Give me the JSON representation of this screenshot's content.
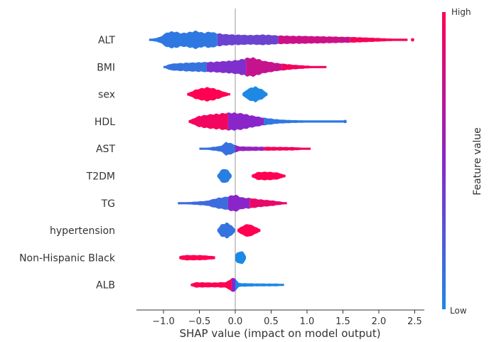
{
  "chart_data": {
    "type": "scatter",
    "subtype": "shap-beeswarm-summary",
    "title": "",
    "xlabel": "SHAP value (impact on model output)",
    "ylabel": "",
    "xlim": [
      -1.38,
      2.65
    ],
    "x_ticks": [
      -1.0,
      -0.5,
      0.0,
      0.5,
      1.0,
      1.5,
      2.0,
      2.5
    ],
    "x_tick_labels": [
      "−1.0",
      "−0.5",
      "0.0",
      "0.5",
      "1.0",
      "1.5",
      "2.0",
      "2.5"
    ],
    "zero_line": true,
    "grid": false,
    "colorbar": {
      "label": "Feature value",
      "high_label": "High",
      "low_label": "Low",
      "high_color": "#ff0052",
      "mid_color": "#8a26c9",
      "low_color": "#1e88e5"
    },
    "features": [
      {
        "name": "ALT",
        "segments": [
          {
            "x0": -1.2,
            "x1": -0.25,
            "value": 0.08
          },
          {
            "x0": -0.25,
            "x1": 0.6,
            "value": 0.35
          },
          {
            "x0": 0.6,
            "x1": 1.6,
            "value": 0.78
          },
          {
            "x0": 1.6,
            "x1": 2.4,
            "value": 0.97
          }
        ],
        "profile": [
          [
            -1.2,
            0.04
          ],
          [
            -1.05,
            0.3
          ],
          [
            -0.95,
            0.8
          ],
          [
            -0.85,
            0.9
          ],
          [
            -0.75,
            0.7
          ],
          [
            -0.65,
            0.8
          ],
          [
            -0.55,
            0.95
          ],
          [
            -0.45,
            0.75
          ],
          [
            -0.35,
            0.85
          ],
          [
            -0.25,
            0.7
          ],
          [
            -0.15,
            0.6
          ],
          [
            0.0,
            0.55
          ],
          [
            0.2,
            0.5
          ],
          [
            0.4,
            0.55
          ],
          [
            0.6,
            0.45
          ],
          [
            0.8,
            0.42
          ],
          [
            1.0,
            0.4
          ],
          [
            1.3,
            0.35
          ],
          [
            1.6,
            0.3
          ],
          [
            1.9,
            0.22
          ],
          [
            2.2,
            0.12
          ],
          [
            2.4,
            0.04
          ]
        ],
        "outliers": [
          2.47
        ]
      },
      {
        "name": "BMI",
        "segments": [
          {
            "x0": -1.0,
            "x1": -0.4,
            "value": 0.1
          },
          {
            "x0": -0.4,
            "x1": 0.15,
            "value": 0.45
          },
          {
            "x0": 0.15,
            "x1": 0.65,
            "value": 0.75
          },
          {
            "x0": 0.65,
            "x1": 1.27,
            "value": 0.95
          }
        ],
        "profile": [
          [
            -1.0,
            0.05
          ],
          [
            -0.9,
            0.35
          ],
          [
            -0.7,
            0.45
          ],
          [
            -0.5,
            0.5
          ],
          [
            -0.3,
            0.55
          ],
          [
            -0.1,
            0.65
          ],
          [
            0.05,
            0.75
          ],
          [
            0.15,
            0.95
          ],
          [
            0.25,
            1.0
          ],
          [
            0.4,
            0.65
          ],
          [
            0.6,
            0.4
          ],
          [
            0.8,
            0.25
          ],
          [
            1.0,
            0.15
          ],
          [
            1.27,
            0.04
          ]
        ],
        "outliers": []
      },
      {
        "name": "sex",
        "segments": [
          {
            "x0": -0.67,
            "x1": -0.07,
            "value": 1.0
          },
          {
            "x0": 0.1,
            "x1": 0.45,
            "value": 0.0
          }
        ],
        "profile": [
          [
            -0.67,
            0.08
          ],
          [
            -0.55,
            0.5
          ],
          [
            -0.4,
            0.75
          ],
          [
            -0.28,
            0.6
          ],
          [
            -0.15,
            0.25
          ],
          [
            -0.07,
            0.08
          ],
          [
            0.02,
            0.0
          ],
          [
            0.1,
            0.1
          ],
          [
            0.17,
            0.55
          ],
          [
            0.27,
            0.85
          ],
          [
            0.38,
            0.5
          ],
          [
            0.45,
            0.1
          ]
        ],
        "outliers": []
      },
      {
        "name": "HDL",
        "segments": [
          {
            "x0": -0.65,
            "x1": -0.1,
            "value": 0.95
          },
          {
            "x0": -0.1,
            "x1": 0.4,
            "value": 0.5
          },
          {
            "x0": 0.4,
            "x1": 1.53,
            "value": 0.08
          }
        ],
        "profile": [
          [
            -0.65,
            0.1
          ],
          [
            -0.5,
            0.6
          ],
          [
            -0.35,
            0.75
          ],
          [
            -0.2,
            0.85
          ],
          [
            -0.05,
            0.95
          ],
          [
            0.1,
            0.85
          ],
          [
            0.25,
            0.6
          ],
          [
            0.4,
            0.4
          ],
          [
            0.6,
            0.22
          ],
          [
            0.8,
            0.15
          ],
          [
            1.0,
            0.12
          ],
          [
            1.3,
            0.08
          ],
          [
            1.45,
            0.04
          ]
        ],
        "outliers": [
          1.53
        ]
      },
      {
        "name": "AST",
        "segments": [
          {
            "x0": -0.5,
            "x1": 0.0,
            "value": 0.12
          },
          {
            "x0": 0.0,
            "x1": 0.4,
            "value": 0.55
          },
          {
            "x0": 0.4,
            "x1": 1.05,
            "value": 0.95
          }
        ],
        "profile": [
          [
            -0.5,
            0.04
          ],
          [
            -0.35,
            0.15
          ],
          [
            -0.2,
            0.3
          ],
          [
            -0.12,
            0.75
          ],
          [
            -0.05,
            0.55
          ],
          [
            0.05,
            0.25
          ],
          [
            0.2,
            0.22
          ],
          [
            0.5,
            0.2
          ],
          [
            0.8,
            0.18
          ],
          [
            1.05,
            0.05
          ]
        ],
        "outliers": []
      },
      {
        "name": "T2DM",
        "segments": [
          {
            "x0": -0.25,
            "x1": -0.05,
            "value": 0.05
          },
          {
            "x0": 0.23,
            "x1": 0.7,
            "value": 1.0
          }
        ],
        "profile": [
          [
            -0.25,
            0.1
          ],
          [
            -0.2,
            0.6
          ],
          [
            -0.15,
            0.8
          ],
          [
            -0.1,
            0.6
          ],
          [
            -0.05,
            0.1
          ],
          [
            0.05,
            0.0
          ],
          [
            0.23,
            0.1
          ],
          [
            0.3,
            0.4
          ],
          [
            0.45,
            0.45
          ],
          [
            0.6,
            0.35
          ],
          [
            0.7,
            0.08
          ]
        ],
        "outliers": []
      },
      {
        "name": "TG",
        "segments": [
          {
            "x0": -0.8,
            "x1": -0.1,
            "value": 0.15
          },
          {
            "x0": -0.1,
            "x1": 0.2,
            "value": 0.5
          },
          {
            "x0": 0.2,
            "x1": 0.72,
            "value": 0.9
          }
        ],
        "profile": [
          [
            -0.8,
            0.04
          ],
          [
            -0.6,
            0.15
          ],
          [
            -0.4,
            0.25
          ],
          [
            -0.25,
            0.55
          ],
          [
            -0.15,
            0.65
          ],
          [
            0.0,
            0.9
          ],
          [
            0.1,
            0.6
          ],
          [
            0.2,
            0.55
          ],
          [
            0.35,
            0.4
          ],
          [
            0.5,
            0.3
          ],
          [
            0.72,
            0.08
          ]
        ],
        "outliers": []
      },
      {
        "name": "hypertension",
        "segments": [
          {
            "x0": -0.25,
            "x1": 0.0,
            "value": 0.1
          },
          {
            "x0": 0.03,
            "x1": 0.35,
            "value": 1.0
          }
        ],
        "profile": [
          [
            -0.25,
            0.1
          ],
          [
            -0.2,
            0.6
          ],
          [
            -0.12,
            0.85
          ],
          [
            -0.05,
            0.55
          ],
          [
            0.0,
            0.08
          ],
          [
            0.03,
            0.1
          ],
          [
            0.1,
            0.5
          ],
          [
            0.18,
            0.7
          ],
          [
            0.28,
            0.4
          ],
          [
            0.35,
            0.08
          ]
        ],
        "outliers": []
      },
      {
        "name": "Non-Hispanic Black",
        "segments": [
          {
            "x0": -0.78,
            "x1": -0.28,
            "value": 1.0
          },
          {
            "x0": 0.0,
            "x1": 0.15,
            "value": 0.0
          }
        ],
        "profile": [
          [
            -0.78,
            0.15
          ],
          [
            -0.7,
            0.28
          ],
          [
            -0.45,
            0.26
          ],
          [
            -0.28,
            0.15
          ],
          [
            -0.1,
            0.0
          ],
          [
            0.0,
            0.3
          ],
          [
            0.04,
            0.65
          ],
          [
            0.11,
            0.65
          ],
          [
            0.15,
            0.2
          ]
        ],
        "outliers": []
      },
      {
        "name": "ALB",
        "segments": [
          {
            "x0": -0.62,
            "x1": -0.05,
            "value": 1.0
          },
          {
            "x0": -0.05,
            "x1": 0.0,
            "value": 0.5
          },
          {
            "x0": 0.0,
            "x1": 0.68,
            "value": 0.0
          }
        ],
        "profile": [
          [
            -0.62,
            0.12
          ],
          [
            -0.55,
            0.28
          ],
          [
            -0.3,
            0.25
          ],
          [
            -0.12,
            0.3
          ],
          [
            -0.06,
            0.7
          ],
          [
            0.0,
            0.7
          ],
          [
            0.05,
            0.2
          ],
          [
            0.3,
            0.15
          ],
          [
            0.6,
            0.14
          ],
          [
            0.68,
            0.08
          ]
        ],
        "outliers": []
      }
    ]
  }
}
